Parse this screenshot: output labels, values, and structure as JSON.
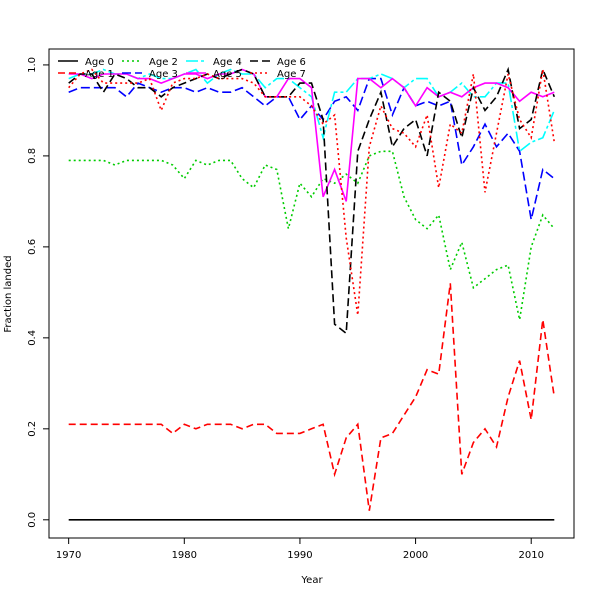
{
  "chart_data": {
    "type": "line",
    "title": "",
    "xlabel": "Year",
    "ylabel": "Fraction landed",
    "xlim": [
      1968.3,
      2013.7
    ],
    "ylim": [
      -0.04,
      1.035
    ],
    "xticks": [
      1970,
      1980,
      1990,
      2000,
      2010
    ],
    "xtick_labels": [
      "1970",
      "1980",
      "1990",
      "2000",
      "2010"
    ],
    "yticks": [
      0.0,
      0.2,
      0.4,
      0.6,
      0.8,
      1.0
    ],
    "ytick_labels": [
      "0.0",
      "0.2",
      "0.4",
      "0.6",
      "0.8",
      "1.0"
    ],
    "grid": false,
    "legend_position": "top-left",
    "x": [
      1970,
      1971,
      1972,
      1973,
      1974,
      1975,
      1976,
      1977,
      1978,
      1979,
      1980,
      1981,
      1982,
      1983,
      1984,
      1985,
      1986,
      1987,
      1988,
      1989,
      1990,
      1991,
      1992,
      1993,
      1994,
      1995,
      1996,
      1997,
      1998,
      1999,
      2000,
      2001,
      2002,
      2003,
      2004,
      2005,
      2006,
      2007,
      2008,
      2009,
      2010,
      2011,
      2012
    ],
    "series": [
      {
        "name": "Age 0",
        "color": "#000000",
        "dash": "",
        "values": [
          0,
          0,
          0,
          0,
          0,
          0,
          0,
          0,
          0,
          0,
          0,
          0,
          0,
          0,
          0,
          0,
          0,
          0,
          0,
          0,
          0,
          0,
          0,
          0,
          0,
          0,
          0,
          0,
          0,
          0,
          0,
          0,
          0,
          0,
          0,
          0,
          0,
          0,
          0,
          0,
          0,
          0,
          0
        ]
      },
      {
        "name": "Age 1",
        "color": "#ff0000",
        "dash": "7,4",
        "values": [
          0.21,
          0.21,
          0.21,
          0.21,
          0.21,
          0.21,
          0.21,
          0.21,
          0.21,
          0.19,
          0.21,
          0.2,
          0.21,
          0.21,
          0.21,
          0.2,
          0.21,
          0.21,
          0.19,
          0.19,
          0.19,
          0.2,
          0.21,
          0.1,
          0.18,
          0.21,
          0.02,
          0.18,
          0.19,
          0.23,
          0.27,
          0.33,
          0.32,
          0.52,
          0.1,
          0.17,
          0.2,
          0.16,
          0.27,
          0.35,
          0.22,
          0.44,
          0.27
        ]
      },
      {
        "name": "Age 2",
        "color": "#00cc00",
        "dash": "2,3",
        "values": [
          0.79,
          0.79,
          0.79,
          0.79,
          0.78,
          0.79,
          0.79,
          0.79,
          0.79,
          0.78,
          0.75,
          0.79,
          0.78,
          0.79,
          0.79,
          0.75,
          0.73,
          0.78,
          0.77,
          0.64,
          0.74,
          0.71,
          0.75,
          0.74,
          0.76,
          0.74,
          0.8,
          0.81,
          0.81,
          0.71,
          0.66,
          0.64,
          0.67,
          0.55,
          0.61,
          0.51,
          0.53,
          0.55,
          0.56,
          0.44,
          0.6,
          0.67,
          0.64
        ]
      },
      {
        "name": "Age 3",
        "color": "#0000ff",
        "dash": "9,4",
        "values": [
          0.94,
          0.95,
          0.95,
          0.95,
          0.95,
          0.93,
          0.96,
          0.95,
          0.94,
          0.95,
          0.95,
          0.94,
          0.95,
          0.94,
          0.94,
          0.95,
          0.93,
          0.91,
          0.93,
          0.93,
          0.88,
          0.91,
          0.88,
          0.92,
          0.93,
          0.9,
          0.97,
          0.97,
          0.89,
          0.95,
          0.91,
          0.92,
          0.91,
          0.92,
          0.78,
          0.82,
          0.87,
          0.82,
          0.85,
          0.81,
          0.66,
          0.77,
          0.75
        ]
      },
      {
        "name": "Age 4",
        "color": "#00ffff",
        "dash": "12,3,3,3",
        "values": [
          0.97,
          0.98,
          0.98,
          0.99,
          0.98,
          0.98,
          0.97,
          0.98,
          0.97,
          0.97,
          0.98,
          0.99,
          0.96,
          0.98,
          0.99,
          0.98,
          0.98,
          0.95,
          0.97,
          0.97,
          0.95,
          0.93,
          0.84,
          0.94,
          0.94,
          0.97,
          0.97,
          0.98,
          0.97,
          0.95,
          0.97,
          0.97,
          0.93,
          0.94,
          0.96,
          0.93,
          0.93,
          0.96,
          0.96,
          0.81,
          0.83,
          0.84,
          0.9
        ]
      },
      {
        "name": "Age 5",
        "color": "#ff00ff",
        "dash": "",
        "values": [
          0.98,
          0.98,
          0.97,
          0.98,
          0.98,
          0.98,
          0.97,
          0.97,
          0.96,
          0.97,
          0.98,
          0.98,
          0.97,
          0.98,
          0.98,
          0.99,
          0.98,
          0.93,
          0.93,
          0.97,
          0.97,
          0.95,
          0.71,
          0.77,
          0.7,
          0.97,
          0.97,
          0.95,
          0.97,
          0.95,
          0.91,
          0.95,
          0.93,
          0.94,
          0.93,
          0.95,
          0.96,
          0.96,
          0.95,
          0.92,
          0.94,
          0.93,
          0.94
        ]
      },
      {
        "name": "Age 6",
        "color": "#000000",
        "dash": "8,4",
        "values": [
          0.96,
          0.98,
          0.98,
          0.94,
          0.98,
          0.97,
          0.95,
          0.95,
          0.93,
          0.95,
          0.96,
          0.97,
          0.98,
          0.97,
          0.98,
          0.99,
          0.98,
          0.93,
          0.93,
          0.93,
          0.96,
          0.96,
          0.88,
          0.43,
          0.41,
          0.81,
          0.88,
          0.94,
          0.82,
          0.86,
          0.88,
          0.8,
          0.94,
          0.92,
          0.84,
          0.95,
          0.9,
          0.93,
          0.99,
          0.86,
          0.88,
          0.99,
          0.93
        ]
      },
      {
        "name": "Age 7",
        "color": "#ff0000",
        "dash": "2,3",
        "values": [
          0.95,
          0.98,
          0.99,
          0.96,
          0.96,
          0.96,
          0.96,
          0.97,
          0.9,
          0.96,
          0.97,
          0.97,
          0.98,
          0.97,
          0.97,
          0.97,
          0.96,
          0.93,
          0.93,
          0.93,
          0.93,
          0.91,
          0.87,
          0.89,
          0.62,
          0.45,
          0.82,
          0.91,
          0.86,
          0.85,
          0.82,
          0.89,
          0.73,
          0.87,
          0.85,
          0.98,
          0.72,
          0.85,
          0.98,
          0.88,
          0.84,
          0.99,
          0.83
        ]
      }
    ]
  }
}
